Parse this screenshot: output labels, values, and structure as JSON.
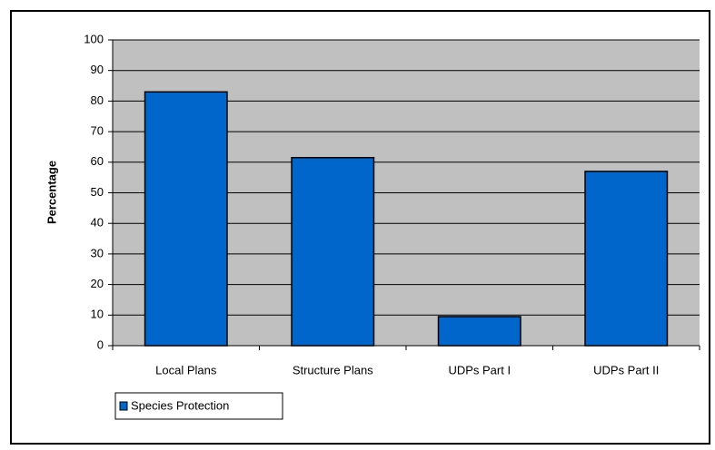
{
  "chart_data": {
    "type": "bar",
    "y_label": "Percentage",
    "categories": [
      "Local Plans",
      "Structure Plans",
      "UDPs Part I",
      "UDPs Part II"
    ],
    "series": [
      {
        "name": "Species Protection",
        "color": "#0066cc",
        "values": [
          83,
          61.5,
          9.5,
          57
        ]
      }
    ],
    "ylim": [
      0,
      100
    ],
    "yticks": [
      0,
      10,
      20,
      30,
      40,
      50,
      60,
      70,
      80,
      90,
      100
    ],
    "grid": true,
    "legend": "bottom-left"
  }
}
